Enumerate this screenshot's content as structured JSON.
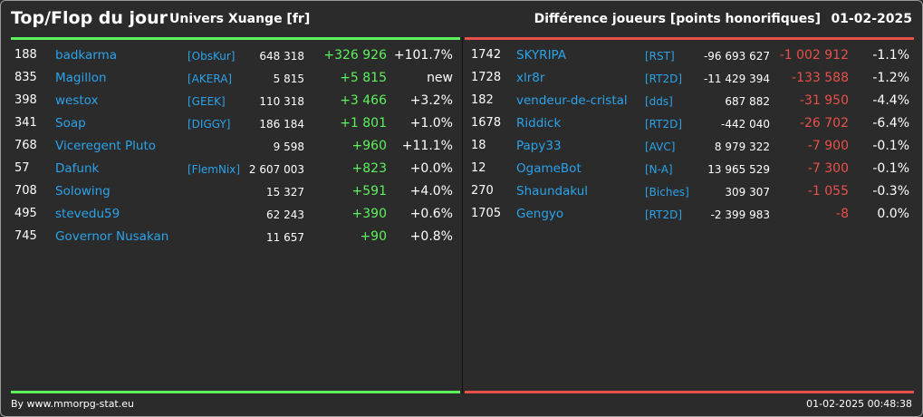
{
  "header": {
    "title": "Top/Flop du jour",
    "universe": "Univers Xuange [fr]",
    "metric": "Différence joueurs [points honorifiques]",
    "date": "01-02-2025"
  },
  "colors": {
    "top_accent": "#5cf25c",
    "flop_accent": "#e8504a",
    "name_link": "#2ba3ea",
    "background": "#2b2b2b"
  },
  "top": [
    {
      "rank": "188",
      "name": "badkarma",
      "tag": "[ObsKur]",
      "points": "648 318",
      "diff": "+326 926",
      "pct": "+101.7%"
    },
    {
      "rank": "835",
      "name": "Magillon",
      "tag": "[AKERA]",
      "points": "5 815",
      "diff": "+5 815",
      "pct": "new"
    },
    {
      "rank": "398",
      "name": "westox",
      "tag": "[GEEK]",
      "points": "110 318",
      "diff": "+3 466",
      "pct": "+3.2%"
    },
    {
      "rank": "341",
      "name": "Soap",
      "tag": "[DIGGY]",
      "points": "186 184",
      "diff": "+1 801",
      "pct": "+1.0%"
    },
    {
      "rank": "768",
      "name": "Viceregent Pluto",
      "tag": "",
      "points": "9 598",
      "diff": "+960",
      "pct": "+11.1%"
    },
    {
      "rank": "57",
      "name": "Dafunk",
      "tag": "[FlemNix]",
      "points": "2 607 003",
      "diff": "+823",
      "pct": "+0.0%"
    },
    {
      "rank": "708",
      "name": "Solowing",
      "tag": "",
      "points": "15 327",
      "diff": "+591",
      "pct": "+4.0%"
    },
    {
      "rank": "495",
      "name": "stevedu59",
      "tag": "",
      "points": "62 243",
      "diff": "+390",
      "pct": "+0.6%"
    },
    {
      "rank": "745",
      "name": "Governor Nusakan",
      "tag": "",
      "points": "11 657",
      "diff": "+90",
      "pct": "+0.8%"
    }
  ],
  "flop": [
    {
      "rank": "1742",
      "name": "SKYRIPA",
      "tag": "[RST]",
      "points": "-96 693 627",
      "diff": "-1 002 912",
      "pct": "-1.1%"
    },
    {
      "rank": "1728",
      "name": "xlr8r",
      "tag": "[RT2D]",
      "points": "-11 429 394",
      "diff": "-133 588",
      "pct": "-1.2%"
    },
    {
      "rank": "182",
      "name": "vendeur-de-cristal",
      "tag": "[dds]",
      "points": "687 882",
      "diff": "-31 950",
      "pct": "-4.4%"
    },
    {
      "rank": "1678",
      "name": "Riddick",
      "tag": "[RT2D]",
      "points": "-442 040",
      "diff": "-26 702",
      "pct": "-6.4%"
    },
    {
      "rank": "18",
      "name": "Papy33",
      "tag": "[AVC]",
      "points": "8 979 322",
      "diff": "-7 900",
      "pct": "-0.1%"
    },
    {
      "rank": "12",
      "name": "OgameBot",
      "tag": "[N-A]",
      "points": "13 965 529",
      "diff": "-7 300",
      "pct": "-0.1%"
    },
    {
      "rank": "270",
      "name": "Shaundakul",
      "tag": "[Biches]",
      "points": "309 307",
      "diff": "-1 055",
      "pct": "-0.3%"
    },
    {
      "rank": "1705",
      "name": "Gengyo",
      "tag": "[RT2D]",
      "points": "-2 399 983",
      "diff": "-8",
      "pct": "0.0%"
    }
  ],
  "footer": {
    "source": "By www.mmorpg-stat.eu",
    "timestamp": "01-02-2025 00:48:38"
  }
}
